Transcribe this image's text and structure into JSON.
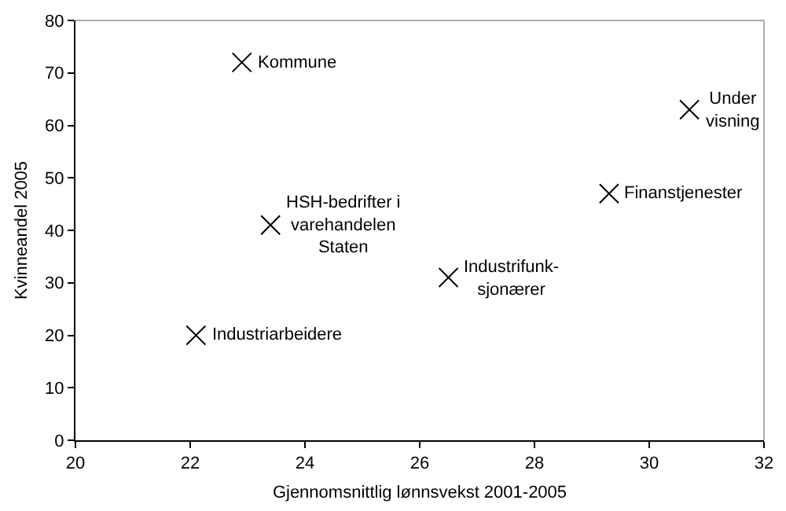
{
  "chart_data": {
    "type": "scatter",
    "xlabel": "Gjennomsnittlig lønnsvekst 2001-2005",
    "ylabel": "Kvinneandel 2005",
    "x": [
      22.9,
      30.7,
      29.3,
      23.4,
      26.5,
      22.1
    ],
    "values": [
      72,
      63,
      47,
      41,
      31,
      20
    ],
    "color": "#000000",
    "marker": "cross",
    "xlim": [
      20,
      32
    ],
    "xticks": [
      20,
      22,
      24,
      26,
      28,
      30,
      32
    ],
    "ylim": [
      0,
      80
    ],
    "yticks": [
      0,
      10,
      20,
      30,
      40,
      50,
      60,
      70,
      80
    ],
    "grid": false,
    "annotations": [
      {
        "text": "Kommune",
        "x": 22.9,
        "y": 72
      },
      {
        "text": "Under\nvisning",
        "x": 30.7,
        "y": 63
      },
      {
        "text": "Finanstjenester",
        "x": 29.3,
        "y": 47
      },
      {
        "text": "HSH-bedrifter i\nvarehandelen\nStaten",
        "x": 23.4,
        "y": 41
      },
      {
        "text": "Industrifunk-\nsjonærer",
        "x": 26.5,
        "y": 31
      },
      {
        "text": "Industriarbeidere",
        "x": 22.1,
        "y": 20
      }
    ]
  }
}
